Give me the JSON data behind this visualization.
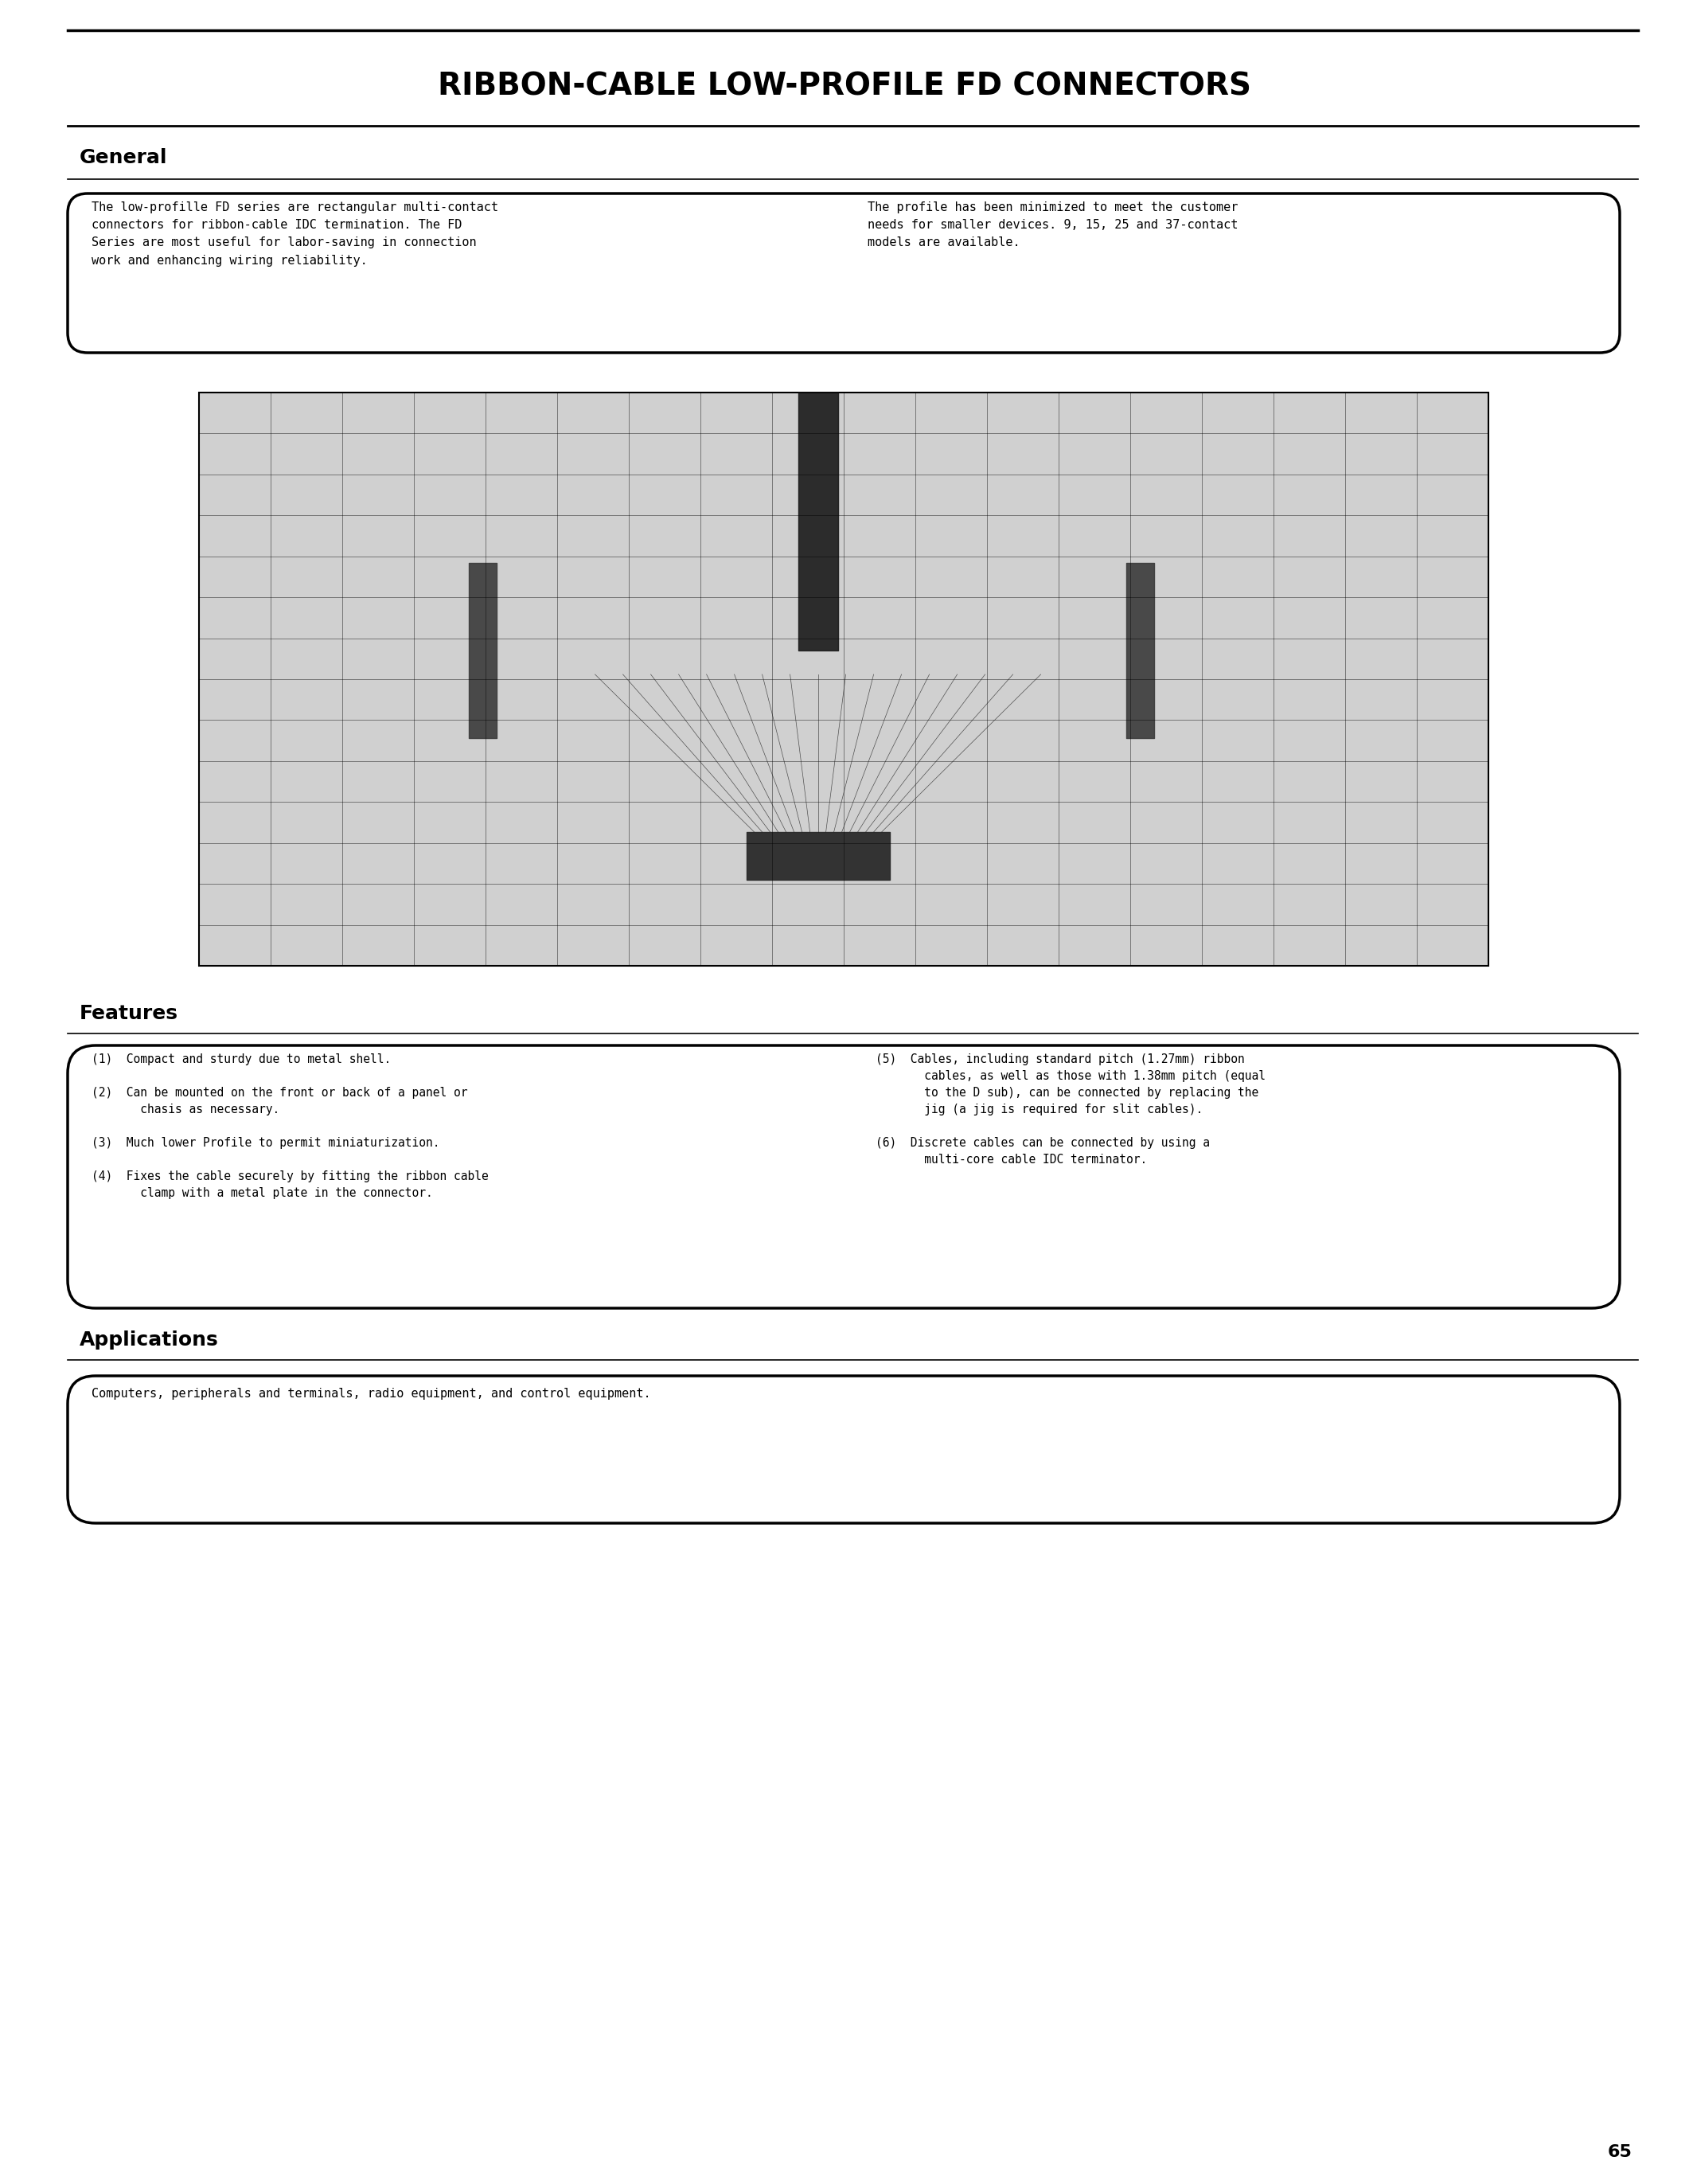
{
  "title": "RIBBON-CABLE LOW-PROFILE FD CONNECTORS",
  "page_number": "65",
  "bg_color": "#ffffff",
  "text_color": "#000000",
  "title_fontsize": 28,
  "section_general": "General",
  "general_text_left": "The low-profille FD series are rectangular multi-contact\nconnectors for ribbon-cable IDC termination. The FD\nSeries are most useful for labor-saving in connection\nwork and enhancing wiring reliability.",
  "general_text_right": "The profile has been minimized to meet the customer\nneeds for smaller devices. 9, 15, 25 and 37-contact\nmodels are available.",
  "section_features": "Features",
  "features_left": [
    "(1)  Compact and sturdy due to metal shell.",
    "(2)  Can be mounted on the front or back of a panel or\n       chasis as necessary.",
    "(3)  Much lower Profile to permit miniaturization.",
    "(4)  Fixes the cable securely by fitting the ribbon cable\n       clamp with a metal plate in the connector."
  ],
  "features_right": [
    "(5)  Cables, including standard pitch (1.27mm) ribbon\n       cables, as well as those with 1.38mm pitch (equal\n       to the D sub), can be connected by replacing the\n       jig (a jig is required for slit cables).",
    "(6)  Discrete cables can be connected by using a\n       multi-core cable IDC terminator."
  ],
  "section_applications": "Applications",
  "applications_text": "Computers, peripherals and terminals, radio equipment, and control equipment."
}
